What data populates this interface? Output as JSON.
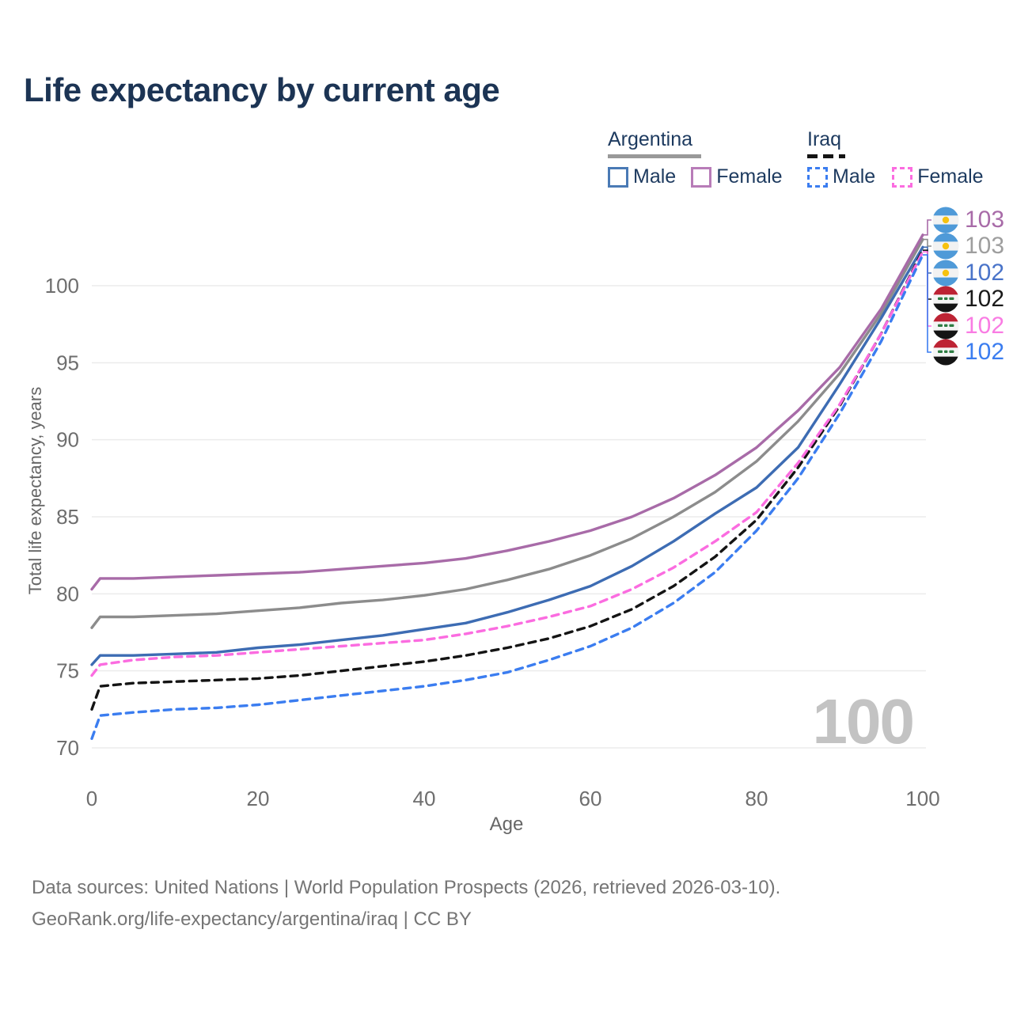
{
  "page": {
    "title": "Life expectancy by current age",
    "watermark_age": "100",
    "footer": {
      "line1": "Data sources: United Nations | World Population Prospects (2026, retrieved 2026-03-10).",
      "line2": "GeoRank.org/life-expectancy/argentina/iraq | CC BY"
    }
  },
  "colors": {
    "title_text": "#1c3454",
    "legend_text": "#1d3a5f",
    "tick_text": "#6e6e6e",
    "axis_title_text": "#666666",
    "footer_text": "#757575",
    "watermark": "#c3c3c3",
    "gridline": "#ebebeb"
  },
  "legend": {
    "groups": [
      {
        "label": "Argentina",
        "underline_style": "solid",
        "underline_color": "#999999",
        "items": [
          {
            "label": "Male",
            "color": "#4a7ab5",
            "style": "solid"
          },
          {
            "label": "Female",
            "color": "#b87cb8",
            "style": "solid"
          }
        ]
      },
      {
        "label": "Iraq",
        "underline_style": "dashed",
        "underline_color": "#141414",
        "items": [
          {
            "label": "Male",
            "color": "#3b7df0",
            "style": "dashed"
          },
          {
            "label": "Female",
            "color": "#fb6ce0",
            "style": "dashed"
          }
        ]
      }
    ]
  },
  "axes": {
    "x_label": "Age",
    "y_label": "Total life expectancy, years"
  },
  "chart_data": {
    "type": "line",
    "title": "Life expectancy by current age",
    "xlabel": "Age",
    "ylabel": "Total life expectancy, years",
    "xlim": [
      0,
      100
    ],
    "ylim": [
      70,
      100
    ],
    "x_ticks": [
      0,
      20,
      40,
      60,
      80,
      100
    ],
    "y_ticks": [
      70,
      75,
      80,
      85,
      90,
      95,
      100
    ],
    "grid": "horizontal",
    "legend_position": "top-right",
    "x": [
      0,
      1,
      5,
      10,
      15,
      20,
      25,
      30,
      35,
      40,
      45,
      50,
      55,
      60,
      65,
      70,
      75,
      80,
      85,
      90,
      95,
      100
    ],
    "series": [
      {
        "key": "argentina_all",
        "name": "Argentina (both sexes)",
        "color": "#8c8c8c",
        "style": "solid",
        "values": [
          77.8,
          78.5,
          78.5,
          78.6,
          78.7,
          78.9,
          79.1,
          79.4,
          79.6,
          79.9,
          80.3,
          80.9,
          81.6,
          82.5,
          83.6,
          85.0,
          86.6,
          88.6,
          91.2,
          94.3,
          98.2,
          103.0
        ]
      },
      {
        "key": "argentina_female",
        "name": "Argentina Female",
        "color": "#a86ba8",
        "style": "solid",
        "values": [
          80.3,
          81.0,
          81.0,
          81.1,
          81.2,
          81.3,
          81.4,
          81.6,
          81.8,
          82.0,
          82.3,
          82.8,
          83.4,
          84.1,
          85.0,
          86.2,
          87.7,
          89.5,
          91.9,
          94.7,
          98.5,
          103.3
        ]
      },
      {
        "key": "argentina_male",
        "name": "Argentina Male",
        "color": "#3d6cb3",
        "style": "solid",
        "values": [
          75.4,
          76.0,
          76.0,
          76.1,
          76.2,
          76.5,
          76.7,
          77.0,
          77.3,
          77.7,
          78.1,
          78.8,
          79.6,
          80.5,
          81.8,
          83.4,
          85.2,
          86.9,
          89.5,
          93.6,
          97.9,
          102.5
        ]
      },
      {
        "key": "iraq_all",
        "name": "Iraq (both sexes)",
        "color": "#141414",
        "style": "dashed",
        "values": [
          72.5,
          74.0,
          74.2,
          74.3,
          74.4,
          74.5,
          74.7,
          75.0,
          75.3,
          75.6,
          76.0,
          76.5,
          77.1,
          77.9,
          79.0,
          80.5,
          82.4,
          84.8,
          88.2,
          92.2,
          96.9,
          102.3
        ]
      },
      {
        "key": "iraq_female",
        "name": "Iraq Female",
        "color": "#fb6ce0",
        "style": "dashed",
        "values": [
          74.7,
          75.4,
          75.7,
          75.9,
          76.0,
          76.2,
          76.4,
          76.6,
          76.8,
          77.0,
          77.4,
          77.9,
          78.5,
          79.2,
          80.3,
          81.7,
          83.4,
          85.3,
          88.5,
          92.3,
          96.9,
          102.2
        ]
      },
      {
        "key": "iraq_male",
        "name": "Iraq Male",
        "color": "#3b7df0",
        "style": "dashed",
        "values": [
          70.6,
          72.1,
          72.3,
          72.5,
          72.6,
          72.8,
          73.1,
          73.4,
          73.7,
          74.0,
          74.4,
          74.9,
          75.7,
          76.6,
          77.8,
          79.4,
          81.4,
          84.1,
          87.5,
          91.7,
          96.4,
          102.0
        ]
      }
    ]
  },
  "end_labels": [
    {
      "series": "argentina_female",
      "country": "argentina",
      "value": "103",
      "color": "#a86ba8"
    },
    {
      "series": "argentina_all",
      "country": "argentina",
      "value": "103",
      "color": "#9e9e9e"
    },
    {
      "series": "argentina_male",
      "country": "argentina",
      "value": "102",
      "color": "#4a74c9"
    },
    {
      "series": "iraq_all",
      "country": "iraq",
      "value": "102",
      "color": "#1a1a1a"
    },
    {
      "series": "iraq_female",
      "country": "iraq",
      "value": "102",
      "color": "#f97ce3"
    },
    {
      "series": "iraq_male",
      "country": "iraq",
      "value": "102",
      "color": "#3b7df0"
    }
  ]
}
